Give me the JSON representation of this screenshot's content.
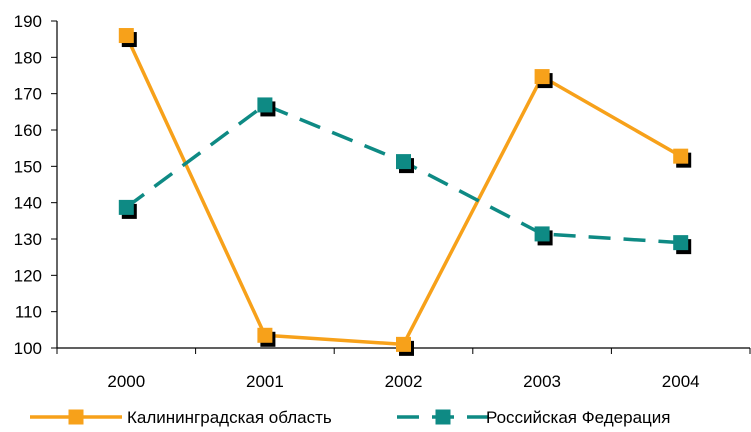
{
  "chart_data": {
    "type": "line",
    "title": "",
    "xlabel": "",
    "ylabel": "",
    "categories": [
      "2000",
      "2001",
      "2002",
      "2003",
      "2004"
    ],
    "ylim": [
      100,
      190
    ],
    "yticks": [
      100,
      110,
      120,
      130,
      140,
      150,
      160,
      170,
      180,
      190
    ],
    "grid": false,
    "legend_position": "bottom",
    "series": [
      {
        "name": "Калининградская область",
        "values": [
          186,
          103.5,
          101,
          174.7,
          152.8
        ],
        "color": "#F7A11A",
        "line_style": "solid",
        "marker": "square"
      },
      {
        "name": "Российская Федерация",
        "values": [
          138.7,
          166.9,
          151.3,
          131.4,
          129
        ],
        "color": "#0E8A84",
        "line_style": "dashed",
        "marker": "square"
      }
    ]
  }
}
